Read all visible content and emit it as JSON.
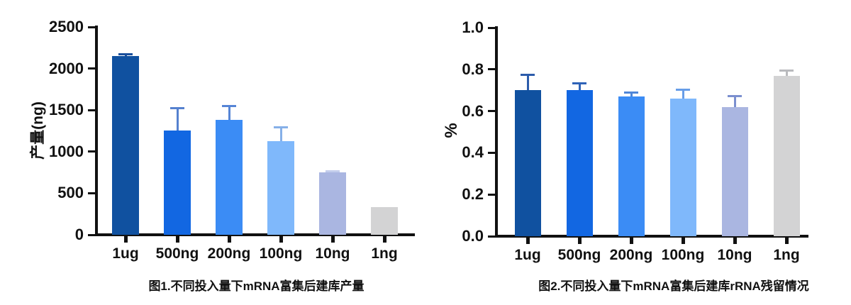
{
  "page": {
    "background": "#ffffff",
    "axis_color": "#111111",
    "text_color": "#111111"
  },
  "chart_data": [
    {
      "type": "bar",
      "title": "图1.不同投入量下mRNA富集后建库产量",
      "xlabel": "",
      "ylabel": "产量(ng)",
      "categories": [
        "1ug",
        "500ng",
        "200ng",
        "100ng",
        "10ng",
        "1ng"
      ],
      "values": [
        2150,
        1255,
        1380,
        1125,
        755,
        330
      ],
      "errors_upper": [
        25,
        275,
        170,
        175,
        15,
        0
      ],
      "ylim": [
        0,
        2500
      ],
      "ytick_labels": [
        "0",
        "500",
        "1000",
        "1500",
        "2000",
        "2500"
      ],
      "bar_colors": [
        "#1051A0",
        "#1267E2",
        "#3B8CF5",
        "#7FB8FB",
        "#AAB6E1",
        "#D3D3D4"
      ],
      "error_colors": [
        "#1a4f9c",
        "#5581cf",
        "#5585d6",
        "#86b0e8",
        "#c3cdec",
        "#b9babd"
      ],
      "grid": false,
      "legend": "none"
    },
    {
      "type": "bar",
      "title": "图2.不同投入量下mRNA富集后建库rRNA残留情况",
      "xlabel": "",
      "ylabel": "%",
      "categories": [
        "1ug",
        "500ng",
        "200ng",
        "100ng",
        "10ng",
        "1ng"
      ],
      "values": [
        0.7,
        0.7,
        0.67,
        0.66,
        0.62,
        0.77
      ],
      "errors_upper": [
        0.075,
        0.035,
        0.02,
        0.045,
        0.055,
        0.025
      ],
      "ylim": [
        0,
        1.0
      ],
      "ytick_labels": [
        "0.0",
        "0.2",
        "0.4",
        "0.6",
        "0.8",
        "1.0"
      ],
      "bar_colors": [
        "#1051A0",
        "#1267E2",
        "#3B8CF5",
        "#7FB8FB",
        "#AAB6E1",
        "#D3D3D4"
      ],
      "error_colors": [
        "#2c5cab",
        "#2f63b8",
        "#4f86d8",
        "#679de8",
        "#7b8fcf",
        "#b9babd"
      ],
      "grid": false,
      "legend": "none"
    }
  ]
}
